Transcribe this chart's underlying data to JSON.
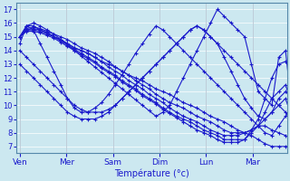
{
  "background_color": "#cce8f0",
  "line_color": "#1a1acc",
  "marker": "+",
  "markersize": 3,
  "linewidth": 0.8,
  "xlabel": "Température (°c)",
  "xlabel_fontsize": 7,
  "yticks": [
    7,
    8,
    9,
    10,
    11,
    12,
    13,
    14,
    15,
    16,
    17
  ],
  "ylim": [
    6.5,
    17.5
  ],
  "day_labels": [
    "Ven",
    "Mer",
    "Sam",
    "Dim",
    "Lun",
    "Mar"
  ],
  "day_x": [
    0,
    24,
    48,
    72,
    96,
    120
  ],
  "xlim": [
    -2,
    138
  ],
  "grid_color": "#ffffff",
  "series": [
    [
      15.0,
      15.8,
      15.8,
      15.5,
      15.3,
      15.0,
      14.8,
      14.5,
      14.2,
      14.0,
      13.8,
      13.5,
      13.2,
      13.0,
      12.8,
      12.5,
      12.2,
      12.0,
      11.8,
      11.5,
      11.2,
      11.0,
      10.8,
      10.5,
      10.2,
      10.0,
      9.8,
      9.5,
      9.2,
      9.0,
      8.8,
      8.5,
      8.2,
      8.0,
      7.8,
      7.5,
      7.2,
      7.0,
      7.0,
      7.0,
      7.0,
      7.0
    ],
    [
      15.0,
      15.6,
      15.7,
      15.6,
      15.4,
      15.2,
      15.0,
      14.8,
      14.5,
      14.2,
      14.0,
      13.8,
      13.5,
      13.2,
      12.8,
      12.5,
      12.2,
      11.8,
      11.5,
      11.2,
      10.8,
      10.5,
      10.2,
      10.0,
      9.8,
      9.5,
      9.2,
      9.0,
      8.8,
      8.5,
      8.2,
      8.0,
      8.0,
      8.0,
      8.2,
      8.5,
      8.5,
      8.2,
      8.0,
      7.8,
      7.5,
      7.2
    ],
    [
      15.0,
      15.5,
      15.6,
      15.5,
      15.3,
      15.0,
      14.8,
      14.5,
      14.2,
      14.0,
      13.8,
      13.5,
      13.2,
      12.8,
      12.5,
      12.2,
      11.8,
      11.5,
      11.2,
      10.8,
      10.5,
      10.2,
      9.8,
      9.5,
      9.2,
      9.0,
      8.8,
      8.5,
      8.2,
      8.0,
      7.8,
      7.8,
      7.8,
      8.0,
      8.2,
      8.5,
      9.0,
      9.5,
      10.0,
      10.5,
      9.0,
      7.5
    ],
    [
      15.0,
      15.5,
      15.5,
      15.4,
      15.2,
      15.0,
      14.7,
      14.4,
      14.1,
      13.8,
      13.5,
      13.2,
      12.8,
      12.5,
      12.2,
      11.8,
      11.5,
      11.2,
      10.8,
      10.5,
      10.2,
      9.8,
      9.5,
      9.2,
      9.0,
      8.8,
      8.5,
      8.2,
      8.0,
      7.8,
      7.5,
      7.5,
      7.5,
      7.5,
      8.0,
      8.5,
      9.5,
      10.5,
      11.0,
      11.5,
      10.0,
      7.0
    ],
    [
      15.0,
      15.4,
      15.4,
      15.3,
      15.1,
      14.9,
      14.6,
      14.3,
      14.0,
      13.7,
      13.4,
      13.1,
      12.7,
      12.4,
      12.1,
      11.7,
      11.4,
      11.1,
      10.7,
      10.4,
      10.1,
      9.7,
      9.4,
      9.1,
      8.8,
      8.5,
      8.2,
      8.0,
      7.8,
      7.5,
      7.3,
      7.3,
      7.3,
      7.5,
      8.2,
      9.0,
      10.5,
      12.0,
      13.0,
      13.2,
      12.5,
      10.0
    ],
    [
      15.0,
      15.8,
      16.0,
      15.8,
      15.5,
      15.2,
      14.8,
      14.4,
      14.0,
      13.6,
      13.2,
      12.8,
      12.4,
      12.0,
      11.6,
      11.2,
      10.8,
      10.4,
      10.0,
      9.6,
      9.2,
      9.5,
      10.0,
      11.0,
      12.0,
      13.0,
      14.0,
      15.0,
      16.0,
      17.0,
      16.5,
      16.0,
      15.5,
      15.0,
      13.0,
      11.0,
      10.5,
      10.0,
      13.5,
      14.0,
      9.5,
      7.5
    ],
    [
      13.0,
      12.5,
      12.0,
      11.5,
      11.0,
      10.5,
      10.0,
      9.5,
      9.2,
      9.0,
      9.0,
      9.0,
      9.2,
      9.5,
      10.0,
      10.5,
      11.0,
      11.5,
      12.0,
      12.5,
      13.0,
      13.5,
      14.0,
      14.5,
      15.0,
      15.5,
      15.8,
      15.5,
      15.0,
      14.5,
      14.0,
      13.5,
      13.0,
      12.5,
      12.0,
      11.5,
      11.0,
      10.5,
      10.0,
      9.5,
      9.0,
      7.5
    ],
    [
      14.5,
      15.8,
      15.5,
      14.5,
      13.5,
      12.5,
      11.5,
      10.5,
      9.8,
      9.5,
      9.5,
      9.8,
      10.2,
      10.8,
      11.5,
      12.2,
      13.0,
      13.8,
      14.5,
      15.2,
      15.8,
      15.5,
      15.0,
      14.5,
      14.0,
      13.5,
      13.0,
      12.5,
      12.0,
      11.5,
      11.0,
      10.5,
      10.0,
      9.5,
      9.0,
      8.5,
      8.0,
      7.8,
      8.5,
      9.2,
      9.8,
      7.0
    ],
    [
      14.0,
      13.5,
      13.0,
      12.5,
      12.0,
      11.5,
      11.0,
      10.5,
      10.0,
      9.7,
      9.5,
      9.5,
      9.5,
      9.7,
      10.0,
      10.5,
      11.0,
      11.5,
      12.0,
      12.5,
      13.0,
      13.5,
      14.0,
      14.5,
      15.0,
      15.5,
      15.8,
      15.5,
      15.0,
      14.5,
      13.5,
      12.5,
      11.5,
      10.5,
      9.8,
      9.2,
      9.0,
      9.5,
      10.5,
      11.0,
      10.5,
      7.5
    ]
  ],
  "n_points": 42,
  "total_hours": 144
}
